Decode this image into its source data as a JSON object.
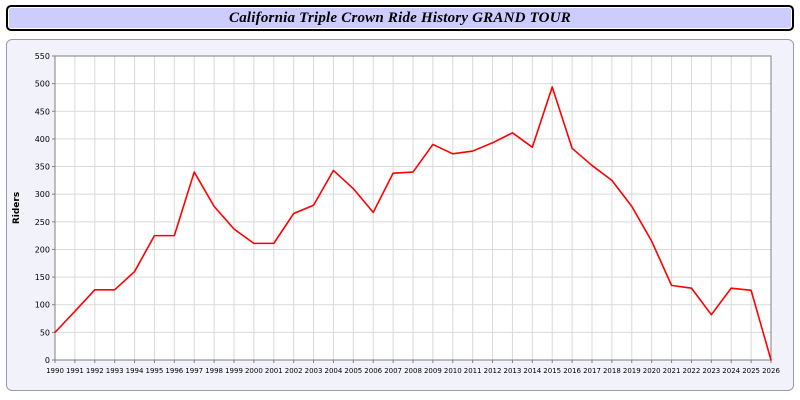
{
  "title": "California Triple Crown Ride History GRAND TOUR",
  "chart_data": {
    "type": "line",
    "title": "California Triple Crown Ride History GRAND TOUR",
    "xlabel": "",
    "ylabel": "Riders",
    "x": [
      1990,
      1991,
      1992,
      1993,
      1994,
      1995,
      1996,
      1997,
      1998,
      1999,
      2000,
      2001,
      2002,
      2003,
      2004,
      2005,
      2006,
      2007,
      2008,
      2009,
      2010,
      2011,
      2012,
      2013,
      2014,
      2015,
      2016,
      2017,
      2018,
      2019,
      2020,
      2021,
      2022,
      2023,
      2024,
      2025,
      2026
    ],
    "series": [
      {
        "name": "Riders",
        "values": [
          50,
          88,
          127,
          127,
          160,
          225,
          225,
          340,
          278,
          237,
          211,
          211,
          265,
          280,
          343,
          310,
          267,
          338,
          340,
          390,
          373,
          378,
          393,
          411,
          385,
          494,
          383,
          352,
          325,
          278,
          215,
          135,
          130,
          82,
          130,
          126,
          0
        ]
      }
    ],
    "ylim": [
      0,
      550
    ],
    "ytick_step": 50,
    "grid": true,
    "legend": "none"
  },
  "colors": {
    "title_bg": "#ccccff",
    "panel_bg": "#f2f2fa",
    "plot_bg": "#ffffff",
    "grid": "#d9d9d9",
    "axis": "#808080",
    "line": "#ff0000"
  }
}
